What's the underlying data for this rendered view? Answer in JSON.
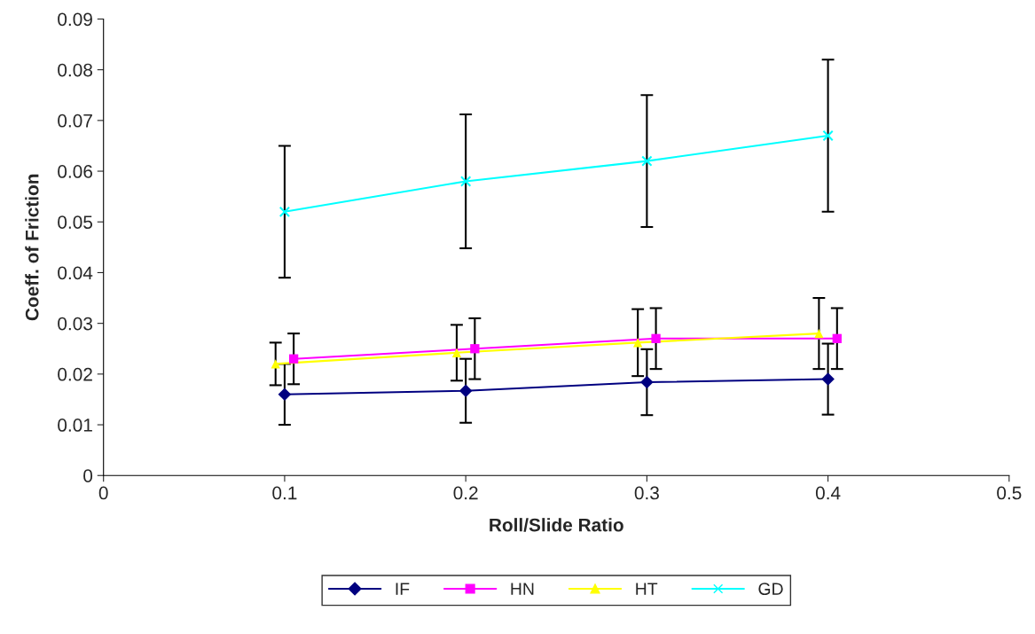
{
  "chart_data": {
    "type": "line",
    "xlabel": "Roll/Slide Ratio",
    "ylabel": "Coeff. of Friction",
    "xlim": [
      0,
      0.5
    ],
    "xticks": [
      0,
      0.1,
      0.2,
      0.3,
      0.4,
      0.5
    ],
    "ylim": [
      0,
      0.09
    ],
    "yticks": [
      0,
      0.01,
      0.02,
      0.03,
      0.04,
      0.05,
      0.06,
      0.07,
      0.08,
      0.09
    ],
    "grid": false,
    "legend": "bottom",
    "series": [
      {
        "name": "IF",
        "color": "#000080",
        "marker": "diamond",
        "x": [
          0.1,
          0.2,
          0.3,
          0.4
        ],
        "values": [
          0.016,
          0.0167,
          0.0184,
          0.019
        ],
        "errors": [
          0.006,
          0.0063,
          0.0065,
          0.007
        ]
      },
      {
        "name": "HN",
        "color": "#ff00ff",
        "marker": "square",
        "x": [
          0.105,
          0.205,
          0.305,
          0.405
        ],
        "values": [
          0.023,
          0.025,
          0.027,
          0.027
        ],
        "errors": [
          0.005,
          0.006,
          0.006,
          0.006
        ]
      },
      {
        "name": "HT",
        "color": "#ffff00",
        "marker": "triangle",
        "x": [
          0.095,
          0.195,
          0.295,
          0.395
        ],
        "values": [
          0.022,
          0.0242,
          0.0262,
          0.028
        ],
        "errors": [
          0.0042,
          0.0055,
          0.0066,
          0.007
        ]
      },
      {
        "name": "GD",
        "color": "#00ffff",
        "marker": "cross",
        "x": [
          0.1,
          0.2,
          0.3,
          0.4
        ],
        "values": [
          0.052,
          0.058,
          0.062,
          0.067
        ],
        "errors": [
          0.013,
          0.0132,
          0.013,
          0.015
        ]
      }
    ]
  }
}
